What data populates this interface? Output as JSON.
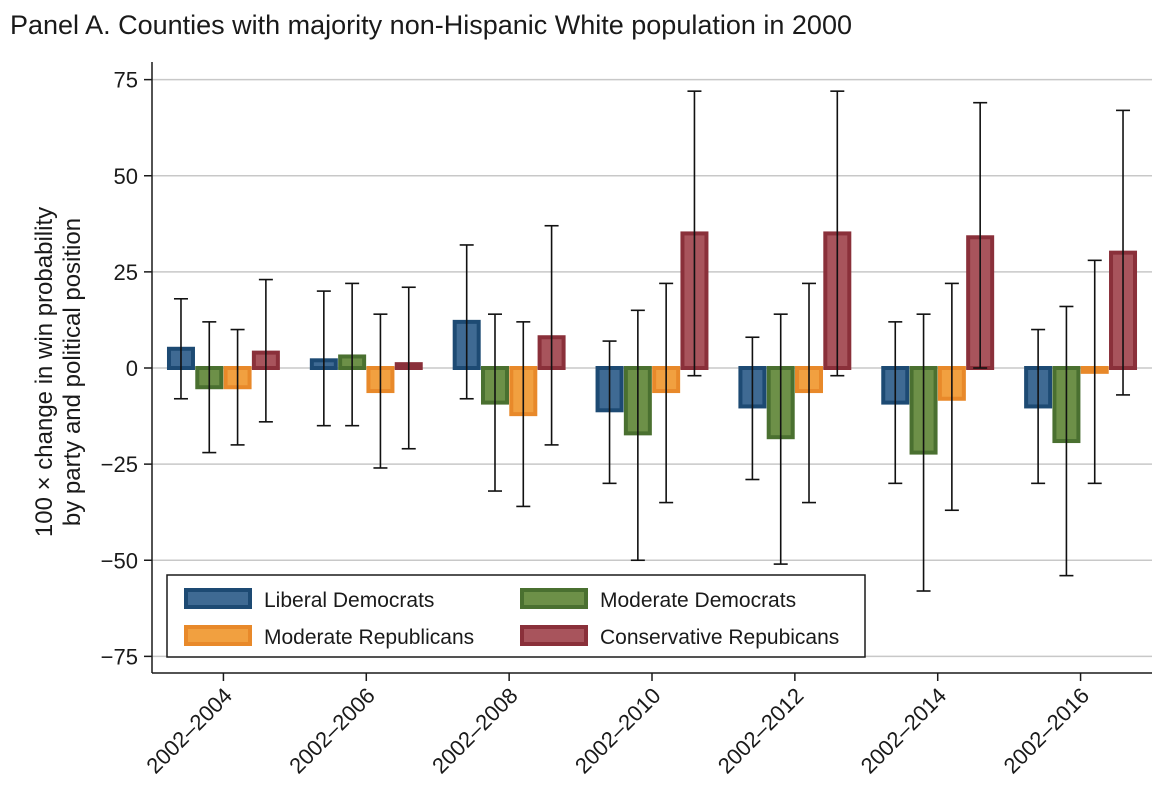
{
  "title": "Panel A. Counties with majority non-Hispanic White population in 2000",
  "chart_data": {
    "type": "bar",
    "title": "Panel A. Counties with majority non-Hispanic White population in 2000",
    "ylabel_line1": "100 × change in win probability",
    "ylabel_line2": "by party and political position",
    "xlabel": "",
    "ylim": [
      -80,
      80
    ],
    "yticks": [
      75,
      50,
      25,
      0,
      -25,
      -50,
      -75
    ],
    "ytick_labels": [
      "75",
      "50",
      "25",
      "0",
      "−25",
      "−50",
      "−75"
    ],
    "grid": true,
    "legend_position": "bottom-left",
    "categories": [
      "2002–2004",
      "2002–2006",
      "2002–2008",
      "2002–2010",
      "2002–2012",
      "2002–2014",
      "2002–2016"
    ],
    "series": [
      {
        "name": "Liberal Democrats",
        "fill": "#3f6a93",
        "stroke": "#1d4a73",
        "values": [
          5,
          2,
          12,
          -11,
          -10,
          -9,
          -10
        ],
        "ci_low": [
          -8,
          -15,
          -8,
          -30,
          -29,
          -30,
          -30
        ],
        "ci_high": [
          18,
          20,
          32,
          7,
          8,
          12,
          10
        ]
      },
      {
        "name": "Moderate Democrats",
        "fill": "#6d9048",
        "stroke": "#4a7030",
        "values": [
          -5,
          3,
          -9,
          -17,
          -18,
          -22,
          -19
        ],
        "ci_low": [
          -22,
          -15,
          -32,
          -50,
          -51,
          -58,
          -54
        ],
        "ci_high": [
          12,
          22,
          14,
          15,
          14,
          14,
          16
        ]
      },
      {
        "name": "Moderate Republicans",
        "fill": "#f1a040",
        "stroke": "#e8892a",
        "values": [
          -5,
          -6,
          -12,
          -6,
          -6,
          -8,
          -1
        ],
        "ci_low": [
          -20,
          -26,
          -36,
          -35,
          -35,
          -37,
          -30
        ],
        "ci_high": [
          10,
          14,
          12,
          22,
          22,
          22,
          28
        ]
      },
      {
        "name": "Conservative Repubicans",
        "fill": "#a8545c",
        "stroke": "#8a303a",
        "values": [
          4,
          1,
          8,
          35,
          35,
          34,
          30
        ],
        "ci_low": [
          -14,
          -21,
          -20,
          -2,
          -2,
          0,
          -7
        ],
        "ci_high": [
          23,
          21,
          37,
          72,
          72,
          69,
          67
        ]
      }
    ]
  }
}
